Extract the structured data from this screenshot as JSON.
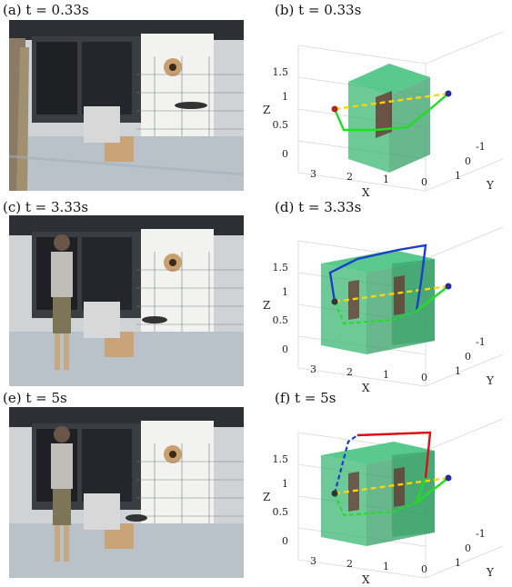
{
  "panels": [
    {
      "photo_caption": "(a) t = 0.33s",
      "plot_caption": "(b) t = 0.33s"
    },
    {
      "photo_caption": "(c) t = 3.33s",
      "plot_caption": "(d) t = 3.33s"
    },
    {
      "photo_caption": "(e) t = 5s",
      "plot_caption": "(f) t = 5s"
    }
  ],
  "plot_axes": {
    "x_label": "X",
    "y_label": "Y",
    "z_label": "Z",
    "x_ticks": [
      "3",
      "2",
      "1",
      "0"
    ],
    "y_ticks": [
      "-1",
      "0",
      "1"
    ],
    "z_ticks": [
      "0",
      "0.5",
      "1",
      "1.5"
    ]
  },
  "colors": {
    "obstacle": "#2fb36a",
    "obstacle_edge": "#1f6b3c",
    "inner_block": "#6b2b2b",
    "reference": "#ffd400",
    "start_segment": "#22dd22",
    "trajectory_mid": "#1a3fc9",
    "trajectory_late": "#dd1111",
    "start_point": "#2a2a9a",
    "goal_point": "#b3261e"
  }
}
